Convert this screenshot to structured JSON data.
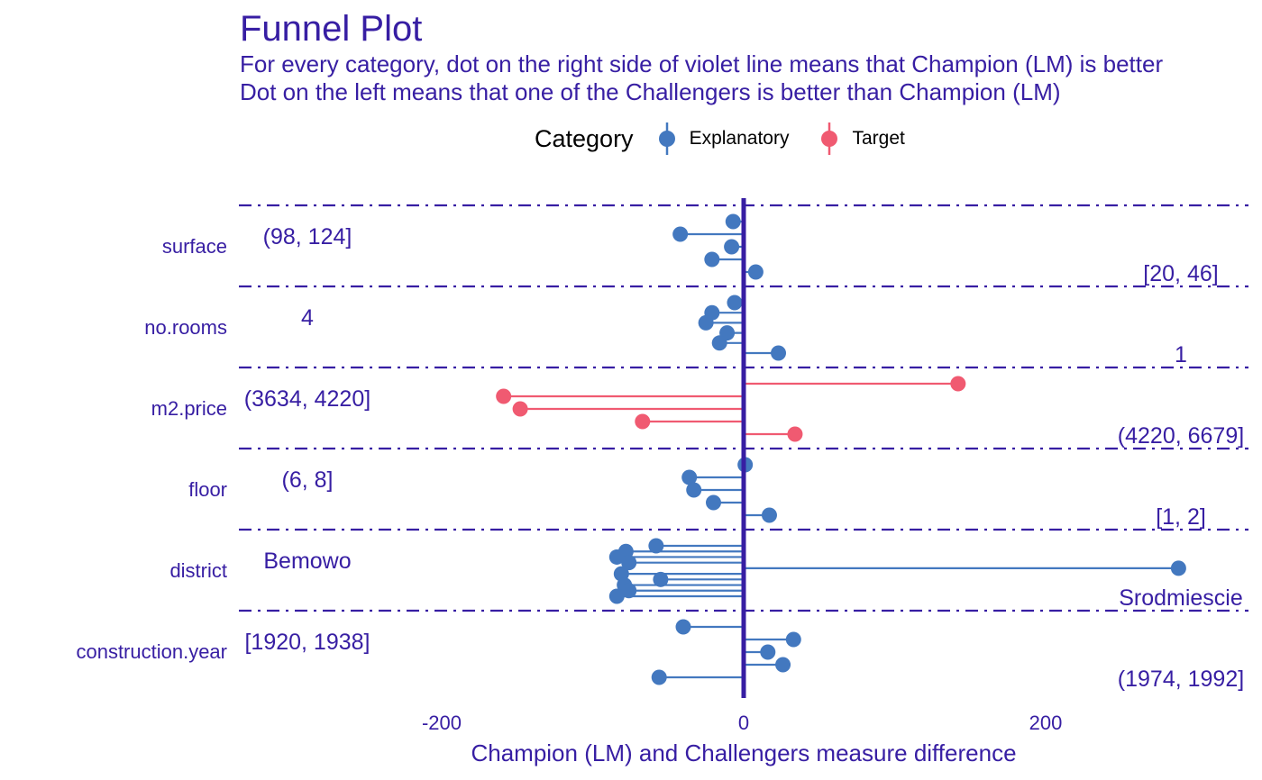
{
  "title": "Funnel Plot",
  "subtitle_lines": [
    "For every category, dot on the right side of violet line means that Champion (LM) is better",
    "Dot on the left means that one of the Challengers is better than Champion (LM)"
  ],
  "legend": {
    "title": "Category",
    "items": [
      {
        "label": "Explanatory",
        "color": "#4378bf"
      },
      {
        "label": "Target",
        "color": "#f05a71"
      }
    ]
  },
  "colors": {
    "text": "#371ea3",
    "zero_line": "#371ea3",
    "separator": "#371ea3",
    "explanatory": "#4378bf",
    "target": "#f05a71"
  },
  "chart_data": {
    "type": "scatter",
    "xlabel": "Champion (LM) and Challengers measure difference",
    "ylabel": "",
    "xlim": [
      -335,
      335
    ],
    "x_ticks": [
      {
        "value": -200,
        "label": "-200"
      },
      {
        "value": 0,
        "label": "0"
      },
      {
        "value": 200,
        "label": "200"
      }
    ],
    "grid": false,
    "legend_position": "top",
    "reference_line": 0,
    "panels": [
      {
        "variable": "surface",
        "category": "Explanatory",
        "left_label": "(98, 124]",
        "right_label": "[20, 46]",
        "values": [
          -7,
          -42,
          -8,
          -21,
          8
        ]
      },
      {
        "variable": "no.rooms",
        "category": "Explanatory",
        "left_label": "4",
        "right_label": "1",
        "values": [
          -6,
          -21,
          -25,
          -11,
          -16,
          23
        ]
      },
      {
        "variable": "m2.price",
        "category": "Target",
        "left_label": "(3634, 4220]",
        "right_label": "(4220, 6679]",
        "values": [
          142,
          -159,
          -148,
          -67,
          34
        ]
      },
      {
        "variable": "floor",
        "category": "Explanatory",
        "left_label": "(6, 8]",
        "right_label": "[1, 2]",
        "values": [
          1,
          -36,
          -33,
          -20,
          17
        ]
      },
      {
        "variable": "district",
        "category": "Explanatory",
        "left_label": "Bemowo",
        "right_label": "Srodmiescie",
        "values": [
          -58,
          -78,
          -84,
          -76,
          288,
          -81,
          -55,
          -79,
          -76,
          -84
        ]
      },
      {
        "variable": "construction.year",
        "category": "Explanatory",
        "left_label": "[1920, 1938]",
        "right_label": "(1974, 1992]",
        "values": [
          -40,
          33,
          16,
          26,
          -56
        ]
      }
    ]
  }
}
